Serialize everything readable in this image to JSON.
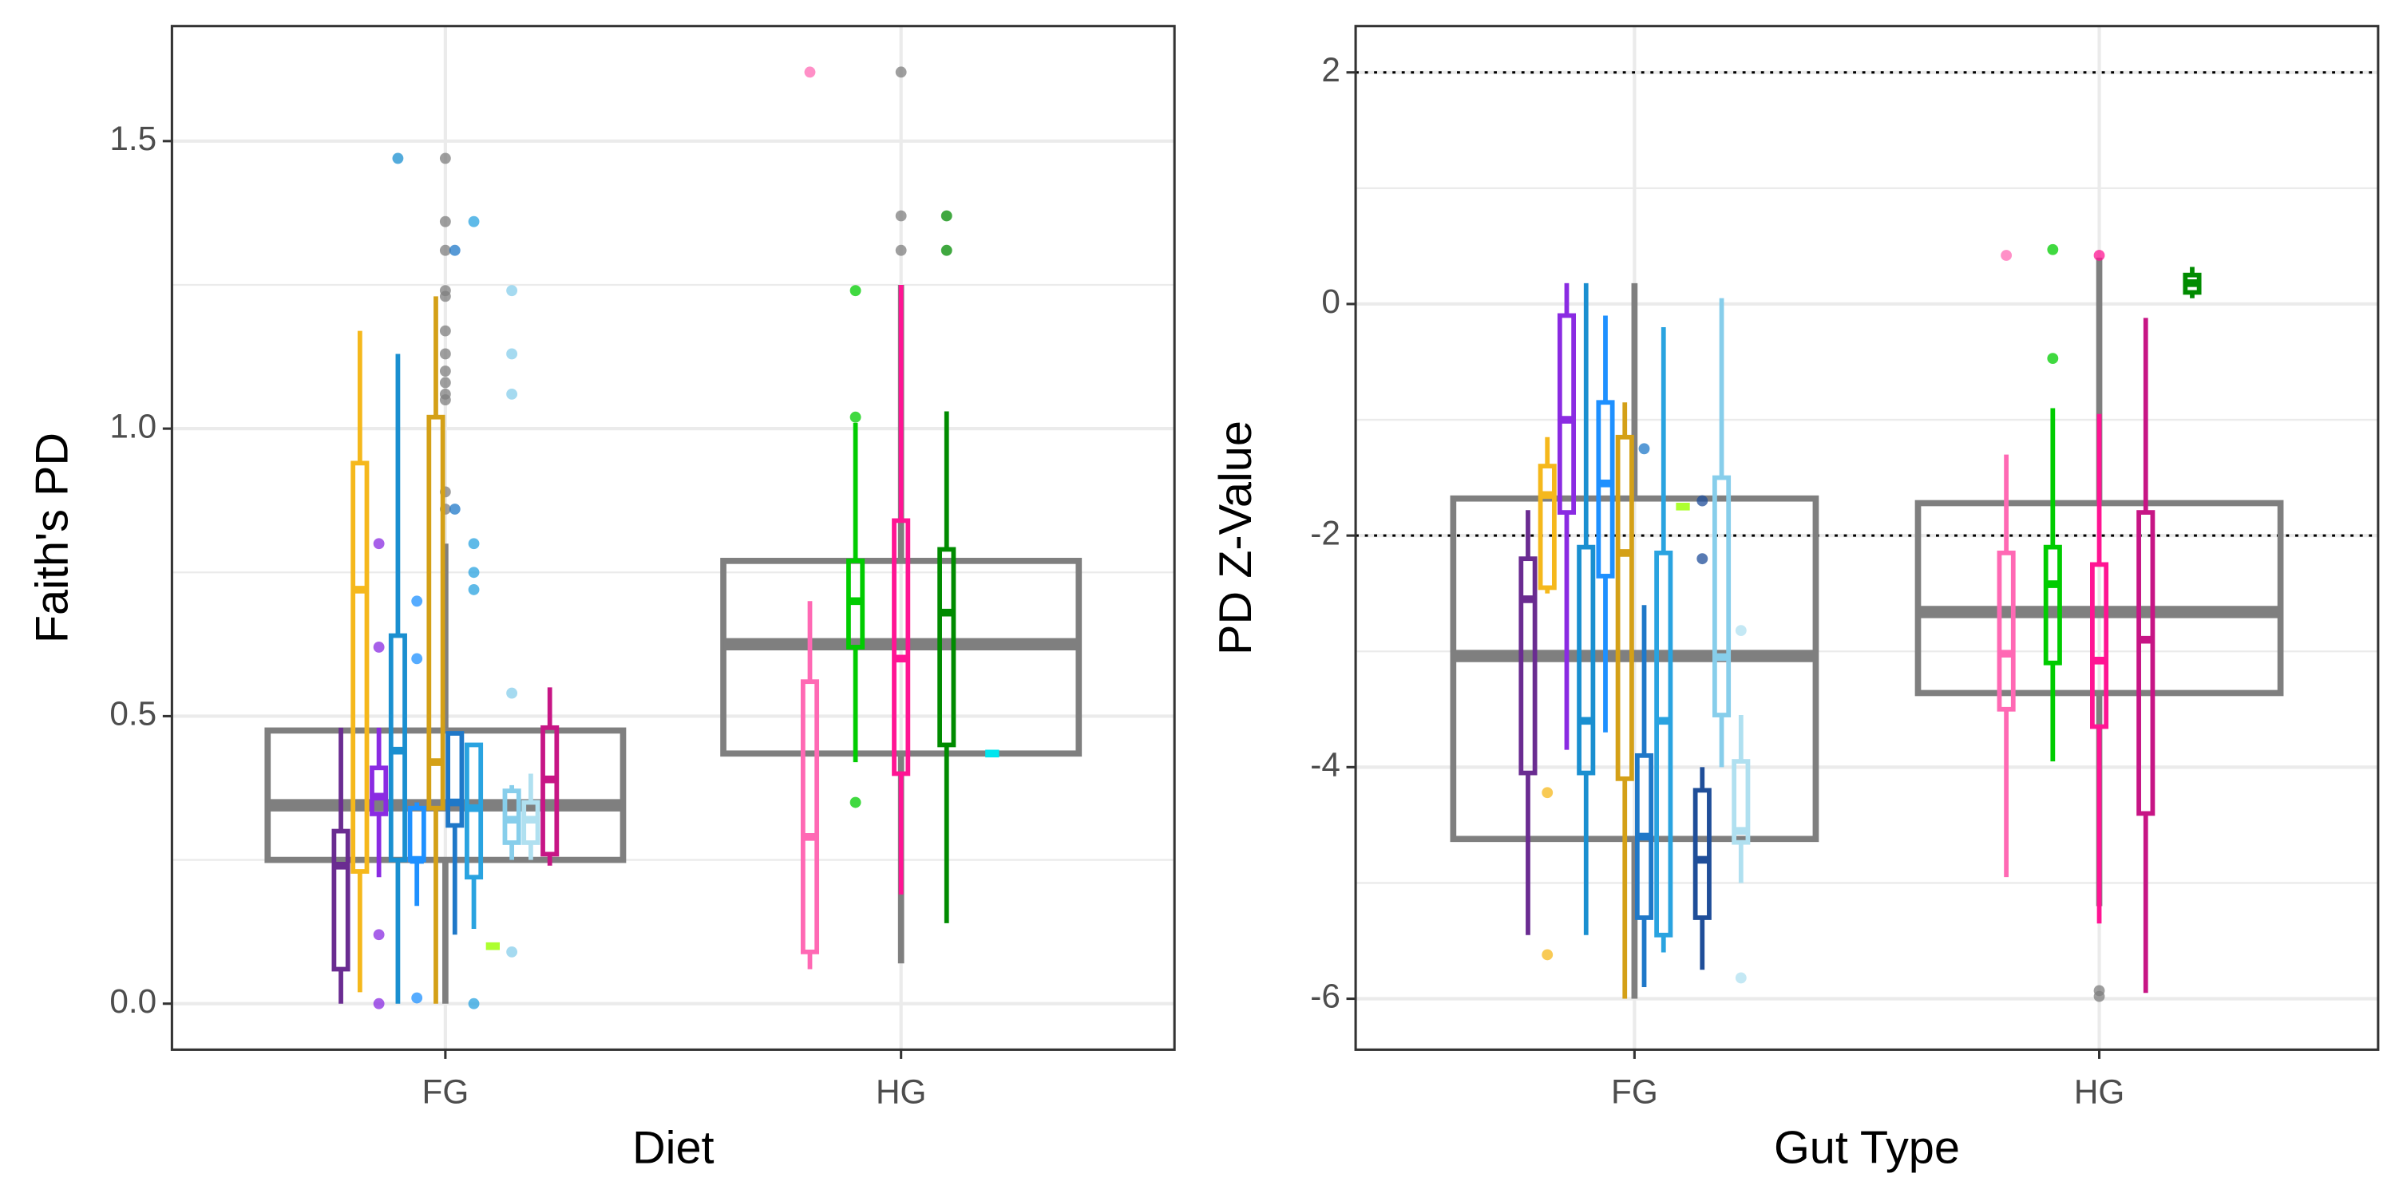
{
  "chart_data": [
    {
      "type": "box",
      "x_label": "Diet",
      "y_label": "Faith's PD",
      "categories": [
        "FG",
        "HG"
      ],
      "ylim": [
        -0.08,
        1.7
      ],
      "yticks": [
        {
          "value": 0,
          "label": "0.0"
        },
        {
          "value": 0.5,
          "label": "0.5"
        },
        {
          "value": 1,
          "label": "1.0"
        },
        {
          "value": 1.5,
          "label": "1.5"
        }
      ],
      "minor_yticks": [
        0.25,
        0.75,
        1.25
      ],
      "grid": true,
      "overall": [
        {
          "color": "#7f7f7f",
          "min": 0,
          "q1": 0.25,
          "median": 0.345,
          "q3": 0.475,
          "max": 0.8,
          "outliers": [
            1.47,
            1.36,
            1.31,
            1.24,
            1.23,
            1.17,
            1.13,
            1.1,
            1.08,
            1.06,
            1.05,
            0.89,
            0.86
          ]
        },
        {
          "color": "#7f7f7f",
          "min": 0.07,
          "q1": 0.435,
          "median": 0.625,
          "q3": 0.77,
          "max": 1.25,
          "outliers": [
            1.62,
            1.37,
            1.31
          ]
        }
      ],
      "groups": [
        [
          {
            "color": "#6a2c91",
            "min": 0,
            "q1": 0.06,
            "median": 0.24,
            "q3": 0.3,
            "max": 0.48
          },
          {
            "color": "#f5b81c",
            "min": 0.02,
            "q1": 0.23,
            "median": 0.72,
            "q3": 0.94,
            "max": 1.17
          },
          {
            "color": "#8a2be2",
            "min": 0.22,
            "q1": 0.33,
            "median": 0.36,
            "q3": 0.41,
            "max": 0.48,
            "outliers": [
              0.8,
              0.62,
              0.12,
              0
            ]
          },
          {
            "color": "#1a8fd0",
            "min": 0,
            "q1": 0.25,
            "median": 0.44,
            "q3": 0.64,
            "max": 1.13,
            "outliers": [
              1.47
            ]
          },
          {
            "color": "#1e90ff",
            "min": 0.17,
            "q1": 0.25,
            "median": 0.25,
            "q3": 0.34,
            "max": 0.35,
            "outliers": [
              0.7,
              0.6,
              0.01
            ]
          },
          {
            "color": "#d4a017",
            "min": 0,
            "q1": 0.34,
            "median": 0.42,
            "q3": 1.02,
            "max": 1.23
          },
          {
            "color": "#1f78c8",
            "min": 0.12,
            "q1": 0.31,
            "median": 0.35,
            "q3": 0.47,
            "max": 0.47,
            "outliers": [
              1.31,
              0.86
            ]
          },
          {
            "color": "#29a3e0",
            "min": 0.13,
            "q1": 0.22,
            "median": 0.34,
            "q3": 0.45,
            "max": 0.45,
            "outliers": [
              1.36,
              0.8,
              0.75,
              0.72,
              0
            ]
          },
          {
            "color": "#adff2f",
            "min": 0.1,
            "q1": 0.1,
            "median": 0.1,
            "q3": 0.1,
            "max": 0.1
          },
          {
            "color": "#87ceeb",
            "min": 0.25,
            "q1": 0.28,
            "median": 0.32,
            "q3": 0.37,
            "max": 0.38,
            "outliers": [
              1.24,
              1.13,
              1.06,
              0.54,
              0.09
            ]
          },
          {
            "color": "#b0e0f0",
            "min": 0.25,
            "q1": 0.28,
            "median": 0.32,
            "q3": 0.35,
            "max": 0.4
          },
          {
            "color": "#c71585",
            "min": 0.24,
            "q1": 0.26,
            "median": 0.39,
            "q3": 0.48,
            "max": 0.55
          }
        ],
        [
          {
            "color": "#ff69b4",
            "min": 0.06,
            "q1": 0.09,
            "median": 0.29,
            "q3": 0.56,
            "max": 0.7,
            "outliers": [
              1.62
            ]
          },
          {
            "color": "#00cc00",
            "min": 0.42,
            "q1": 0.62,
            "median": 0.7,
            "q3": 0.77,
            "max": 1.01,
            "outliers": [
              1.24,
              1.02,
              0.35
            ]
          },
          {
            "color": "#ff1493",
            "min": 0.19,
            "q1": 0.4,
            "median": 0.6,
            "q3": 0.84,
            "max": 1.25
          },
          {
            "color": "#008b00",
            "min": 0.14,
            "q1": 0.45,
            "median": 0.68,
            "q3": 0.79,
            "max": 1.03,
            "outliers": [
              1.37,
              1.31
            ]
          },
          {
            "color": "#00e5ee",
            "min": 0.435,
            "q1": 0.435,
            "median": 0.435,
            "q3": 0.435,
            "max": 0.435
          }
        ]
      ]
    },
    {
      "type": "box",
      "x_label": "Gut Type",
      "y_label": "PD Z-Value",
      "categories": [
        "FG",
        "HG"
      ],
      "ylim": [
        -6.44,
        2.4
      ],
      "yticks": [
        -6,
        -4,
        -2,
        0,
        2
      ],
      "minor_yticks": [
        -5,
        -3,
        -1,
        1
      ],
      "grid": true,
      "hlines": [
        2,
        -2
      ],
      "overall": [
        {
          "color": "#7f7f7f",
          "min": -6,
          "q1": -4.62,
          "median": -3.04,
          "q3": -1.68,
          "max": 0.18
        },
        {
          "color": "#7f7f7f",
          "min": -5.2,
          "q1": -3.36,
          "median": -2.66,
          "q3": -1.72,
          "max": 0.4,
          "outliers": [
            -5.93,
            -5.98
          ]
        }
      ],
      "groups": [
        [
          {
            "color": "#6a2c91",
            "min": -5.45,
            "q1": -4.05,
            "median": -2.55,
            "q3": -2.2,
            "max": -1.78
          },
          {
            "color": "#f5b81c",
            "min": -2.5,
            "q1": -2.45,
            "median": -1.65,
            "q3": -1.4,
            "max": -1.15,
            "outliers": [
              -4.22,
              -5.62
            ]
          },
          {
            "color": "#8a2be2",
            "min": -3.85,
            "q1": -1.8,
            "median": -1,
            "q3": -0.1,
            "max": 0.18
          },
          {
            "color": "#1a8fd0",
            "min": -5.45,
            "q1": -4.05,
            "median": -3.6,
            "q3": -2.1,
            "max": 0.18
          },
          {
            "color": "#1e90ff",
            "min": -3.7,
            "q1": -2.35,
            "median": -1.55,
            "q3": -0.85,
            "max": -0.1
          },
          {
            "color": "#d4a017",
            "min": -6,
            "q1": -4.1,
            "median": -2.15,
            "q3": -1.15,
            "max": -0.85
          },
          {
            "color": "#1f78c8",
            "min": -5.9,
            "q1": -5.3,
            "median": -4.6,
            "q3": -3.9,
            "max": -2.6,
            "outliers": [
              -1.25
            ]
          },
          {
            "color": "#29a3e0",
            "min": -5.6,
            "q1": -5.45,
            "median": -3.6,
            "q3": -2.15,
            "max": -0.2
          },
          {
            "color": "#adff2f",
            "min": -1.75,
            "q1": -1.75,
            "median": -1.75,
            "q3": -1.75,
            "max": -1.75
          },
          {
            "color": "#1f4e99",
            "min": -5.75,
            "q1": -5.3,
            "median": -4.8,
            "q3": -4.2,
            "max": -4,
            "outliers": [
              -1.7,
              -2.2
            ]
          },
          {
            "color": "#87ceeb",
            "min": -4,
            "q1": -3.55,
            "median": -3.05,
            "q3": -1.5,
            "max": 0.05
          },
          {
            "color": "#b0e0f0",
            "min": -5,
            "q1": -4.65,
            "median": -4.55,
            "q3": -3.95,
            "max": -3.55,
            "outliers": [
              -2.82,
              -5.82
            ]
          }
        ],
        [
          {
            "color": "#ff69b4",
            "min": -4.95,
            "q1": -3.5,
            "median": -3.02,
            "q3": -2.15,
            "max": -1.3,
            "outliers": [
              0.42
            ]
          },
          {
            "color": "#00cc00",
            "min": -3.95,
            "q1": -3.1,
            "median": -2.42,
            "q3": -2.1,
            "max": -0.9,
            "outliers": [
              0.47,
              -0.47
            ]
          },
          {
            "color": "#ff1493",
            "min": -5.35,
            "q1": -3.65,
            "median": -3.08,
            "q3": -2.25,
            "max": -0.95,
            "outliers": [
              0.42
            ]
          },
          {
            "color": "#c71585",
            "min": -5.95,
            "q1": -4.4,
            "median": -2.9,
            "q3": -1.8,
            "max": -0.12
          },
          {
            "color": "#008b00",
            "min": 0.05,
            "q1": 0.1,
            "median": 0.18,
            "q3": 0.25,
            "max": 0.32
          }
        ]
      ]
    }
  ]
}
